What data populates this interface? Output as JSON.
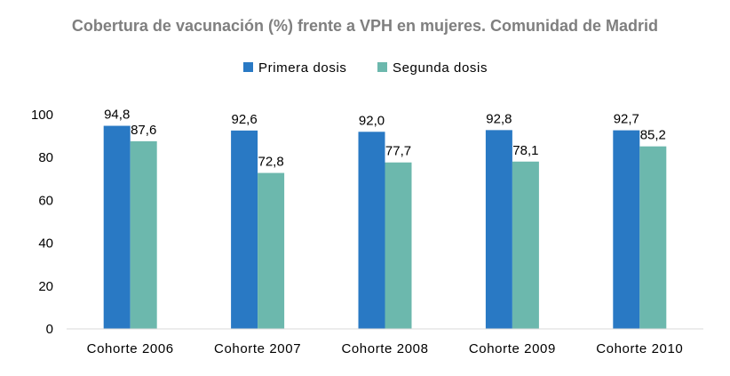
{
  "chart_data": {
    "type": "bar",
    "title": "Cobertura de vacunación (%) frente a VPH en mujeres. Comunidad de Madrid",
    "categories": [
      "Cohorte 2006",
      "Cohorte 2007",
      "Cohorte 2008",
      "Cohorte 2009",
      "Cohorte 2010"
    ],
    "series": [
      {
        "name": "Primera dosis",
        "color": "#2979c4",
        "values": [
          94.8,
          92.6,
          92.0,
          92.8,
          92.7
        ],
        "labels": [
          "94,8",
          "92,6",
          "92,0",
          "92,8",
          "92,7"
        ]
      },
      {
        "name": "Segunda dosis",
        "color": "#6cb8ad",
        "values": [
          87.6,
          72.8,
          77.7,
          78.1,
          85.2
        ],
        "labels": [
          "87,6",
          "72,8",
          "77,7",
          "78,1",
          "85,2"
        ]
      }
    ],
    "ylim": [
      0,
      100
    ],
    "yticks": [
      0,
      20,
      40,
      60,
      80,
      100
    ],
    "ytick_labels": [
      "0",
      "20",
      "40",
      "60",
      "80",
      "100"
    ],
    "xlabel": "",
    "ylabel": "",
    "grid": false,
    "legend_position": "top-center"
  }
}
